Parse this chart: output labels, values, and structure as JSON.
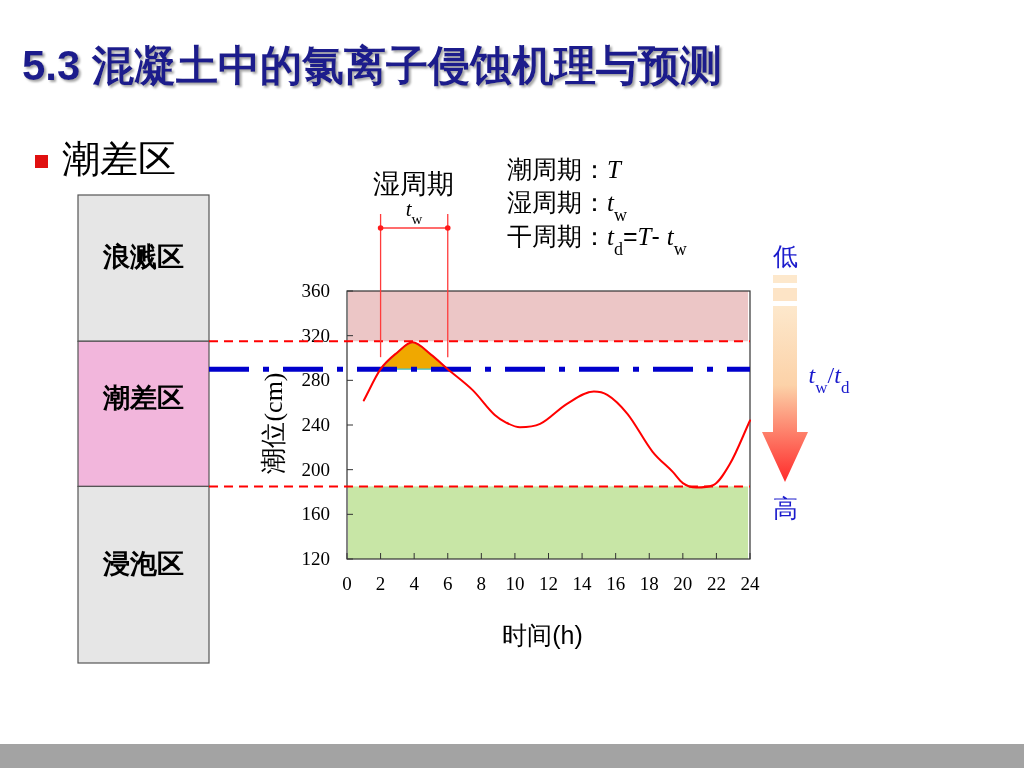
{
  "chart_data": {
    "type": "line",
    "title": "5.3 混凝土中的氯离子侵蚀机理与预测",
    "subtitle": "潮差区",
    "xlabel": "时间(h)",
    "ylabel": "潮位(cm)",
    "xlim": [
      0,
      24
    ],
    "xticks": [
      0,
      2,
      4,
      6,
      8,
      10,
      12,
      14,
      16,
      18,
      20,
      22,
      24
    ],
    "ylim": [
      120,
      360
    ],
    "yticks": [
      120,
      160,
      200,
      240,
      280,
      320,
      360
    ],
    "series": [
      {
        "color": "#ff0000",
        "x": [
          1,
          2,
          3,
          3.9,
          5,
          6,
          7.5,
          8.8,
          9.5,
          10.3,
          11.5,
          13.1,
          14.7,
          15.5,
          16.7,
          18.2,
          19.4,
          20,
          20.8,
          21.8,
          22.8,
          24
        ],
        "values": [
          262,
          290,
          305,
          314,
          303,
          290,
          271,
          249,
          242,
          238,
          241,
          259,
          270,
          267,
          250,
          216,
          198,
          188,
          184,
          186,
          205,
          244
        ]
      },
      {
        "type": "area",
        "color": "#f0a800",
        "x": [
          2,
          3,
          3.9,
          5,
          6
        ],
        "values": [
          290,
          305,
          314,
          303,
          290
        ]
      }
    ],
    "ref_lines": [
      {
        "axis": "y",
        "value": 315,
        "color": "#ff0000",
        "line_style": "dashed"
      },
      {
        "axis": "y",
        "value": 185,
        "color": "#ff0000",
        "line_style": "dashed"
      },
      {
        "axis": "y",
        "value": 290,
        "color": "#0000cc",
        "line_style": "dashdot"
      }
    ],
    "bands": [
      {
        "axis": "y",
        "from": 315,
        "to": 360,
        "color": "#ecc6c6"
      },
      {
        "axis": "y",
        "from": 120,
        "to": 185,
        "color": "#c8e6a6"
      }
    ],
    "annotations": [
      "湿周期",
      "t$_{w}$",
      "潮周期：T",
      "湿周期：t$_{w}$",
      "干周期：t$_{d}$=T- t$_{w}$",
      "浪溅区",
      "潮差区",
      "浸泡区",
      "低",
      "高",
      "t$_{w}$/t$_{d}$"
    ]
  }
}
